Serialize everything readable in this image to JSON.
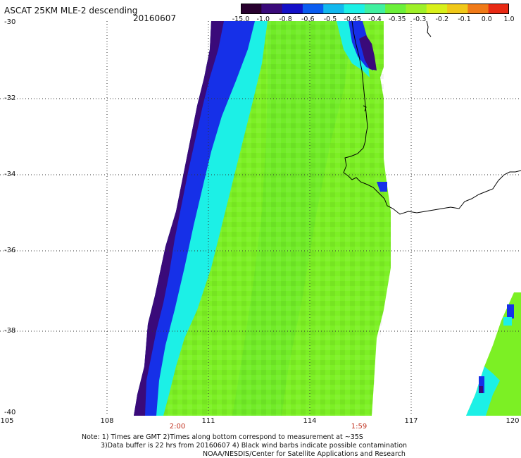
{
  "header": {
    "title": "ASCAT 25KM MLE-2 descending",
    "date": "20160607"
  },
  "colorbar": {
    "labels": [
      "-15.0",
      "-1.0",
      "-0.8",
      "-0.6",
      "-0.5",
      "-0.45",
      "-0.4",
      "-0.35",
      "-0.3",
      "-0.2",
      "-0.1",
      "0.0",
      "1.0"
    ],
    "colors": [
      "#28002e",
      "#3a0a7a",
      "#1410c8",
      "#0a5cf0",
      "#12b8ee",
      "#1cf0e6",
      "#40f0a0",
      "#6cf03a",
      "#9ef028",
      "#d8f01a",
      "#f0c818",
      "#f07a18",
      "#e82a14"
    ]
  },
  "axes": {
    "lat_labels": [
      "-30",
      "-32",
      "-34",
      "-36",
      "-38",
      "-40"
    ],
    "lon_labels": [
      "105",
      "108",
      "111",
      "114",
      "117",
      "120"
    ],
    "time_labels": [
      "2:00",
      "1:59"
    ]
  },
  "notes": {
    "line1": "Note: 1) Times are GMT 2)Times along bottom correspond to measurement at ~35S",
    "line2": "3)Data buffer is 22 hrs from 20160607 4) Black wind barbs indicate possible contamination",
    "line3": "NOAA/NESDIS/Center for Satellite Applications and Research"
  },
  "colors": {
    "swath_green": "#7cf024",
    "swath_cyan": "#1cf0e6",
    "swath_blue": "#1630e8",
    "swath_purple": "#3a0a7a",
    "coastline": "#000000",
    "time_label": "#c0301e"
  }
}
